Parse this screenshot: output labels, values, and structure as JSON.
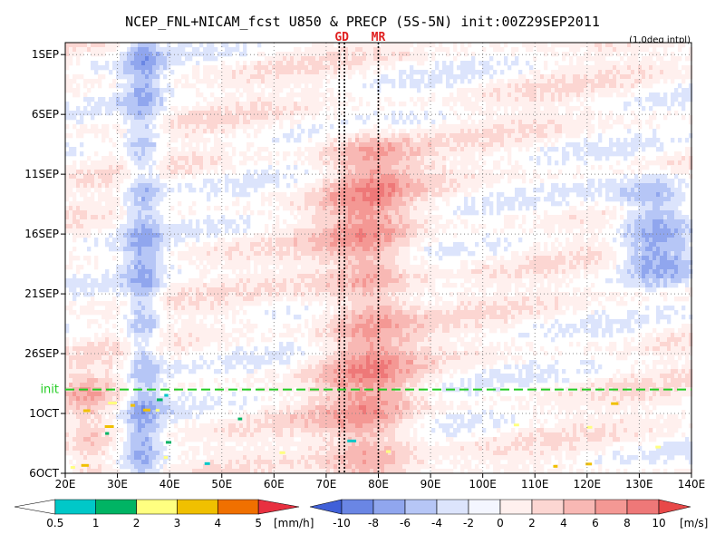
{
  "chart_data": {
    "type": "heatmap",
    "title": "NCEP_FNL+NICAM_fcst U850 & PRECP (5S-5N) init:00Z29SEP2011",
    "subtitle": "(1.0deg intpl)",
    "x_axis": {
      "range": [
        20,
        140
      ],
      "ticks": [
        20,
        30,
        40,
        50,
        60,
        70,
        80,
        90,
        100,
        110,
        120,
        130,
        140
      ],
      "tick_labels": [
        "20E",
        "30E",
        "40E",
        "50E",
        "60E",
        "70E",
        "80E",
        "90E",
        "100E",
        "110E",
        "120E",
        "130E",
        "140E"
      ]
    },
    "y_axis": {
      "tick_labels": [
        "1SEP",
        "6SEP",
        "11SEP",
        "16SEP",
        "21SEP",
        "26SEP",
        "1OCT",
        "6OCT"
      ],
      "tick_days": [
        0,
        5,
        10,
        15,
        20,
        25,
        30,
        35
      ],
      "range_days": [
        -1,
        35
      ],
      "inverted": true
    },
    "grid": true,
    "init_line": {
      "label": "init",
      "day": 28,
      "color": "#22cc22"
    },
    "markers": [
      {
        "label": "GD",
        "x": [
          72.5,
          73.5
        ]
      },
      {
        "label": "MR",
        "x": [
          80
        ]
      }
    ],
    "u850_field": {
      "units": "[m/s]",
      "features": [
        {
          "kind": "easterly",
          "x": 35,
          "width": 3.5,
          "strength": -5
        },
        {
          "kind": "westerly",
          "x": 78,
          "width": 9,
          "y_from": 8,
          "y_to": 35,
          "strength": 6
        },
        {
          "kind": "easterly",
          "x": 133,
          "width": 7,
          "y_from": 12,
          "y_to": 17,
          "strength": -7
        },
        {
          "kind": "westerly",
          "x": 25,
          "width": 5,
          "y_from": 28,
          "y_to": 35,
          "strength": 4
        }
      ]
    },
    "precip_colorbar": {
      "units": "[mm/h]",
      "labels": [
        "0.5",
        "1",
        "2",
        "3",
        "4",
        "5"
      ],
      "colors": [
        "#ffffff",
        "#00c8c8",
        "#00b464",
        "#ffff80",
        "#f0c000",
        "#f07000",
        "#e83040"
      ]
    },
    "u850_colorbar": {
      "units": "[m/s]",
      "labels": [
        "-10",
        "-8",
        "-6",
        "-4",
        "-2",
        "0",
        "2",
        "4",
        "6",
        "8",
        "10"
      ],
      "colors": [
        "#4060d8",
        "#6a86e4",
        "#90a6ee",
        "#b6c6f6",
        "#dce4fc",
        "#f4f6ff",
        "#fff0ee",
        "#fcd6d2",
        "#f8b8b4",
        "#f49894",
        "#ee7878",
        "#e84848"
      ]
    }
  }
}
